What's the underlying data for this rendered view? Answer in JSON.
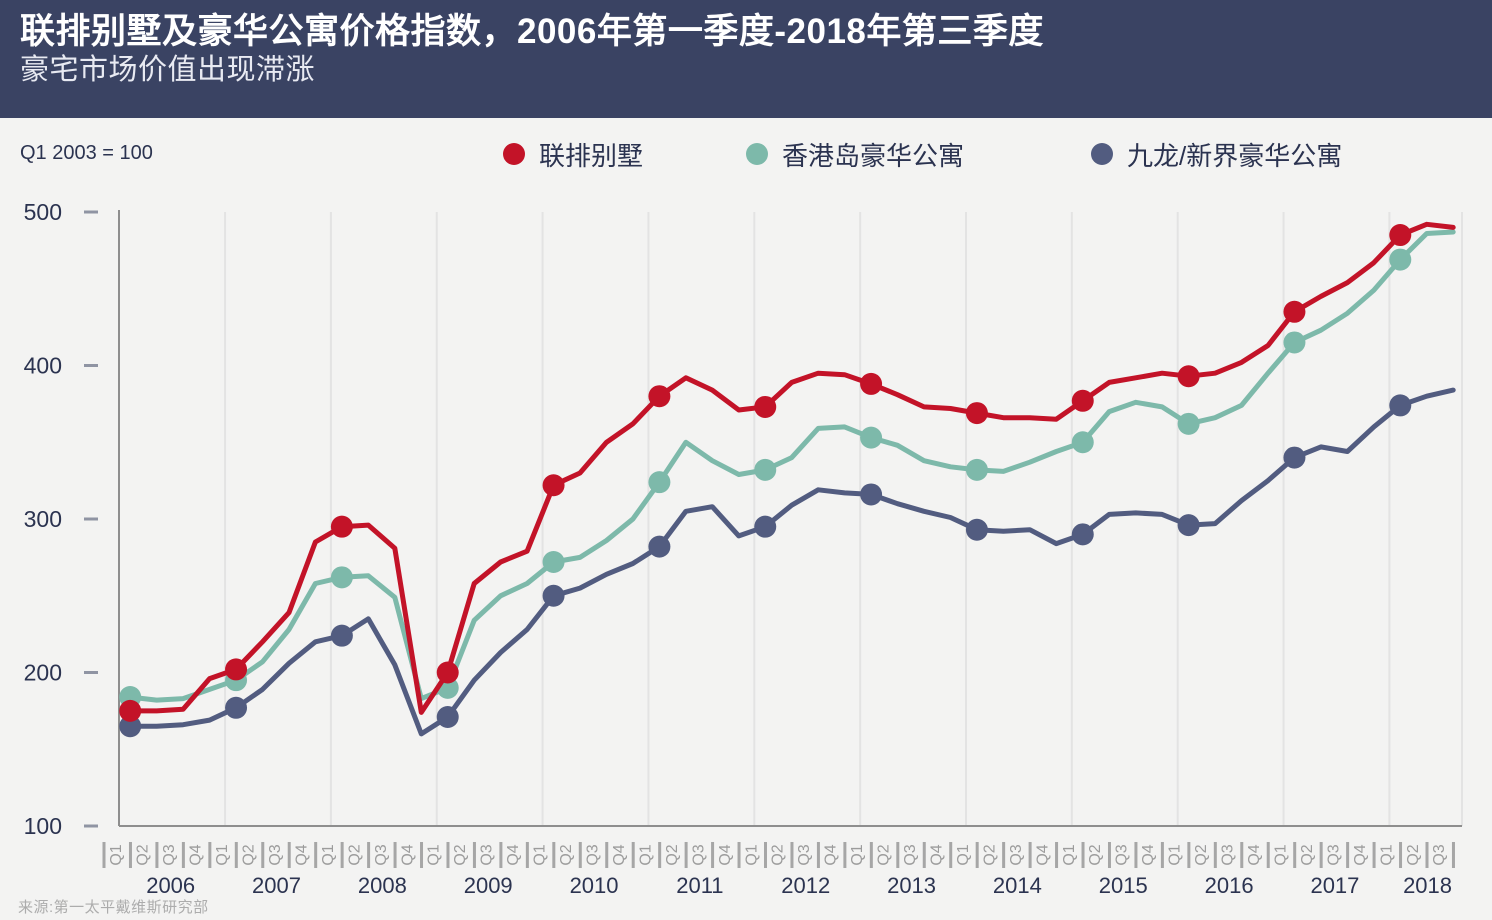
{
  "header": {
    "title": "联排别墅及豪华公寓价格指数，2006年第一季度-2018年第三季度",
    "subtitle": "豪宅市场价值出现滞涨"
  },
  "index_note": "Q1 2003 = 100",
  "legend": {
    "items": [
      {
        "label": "联排别墅",
        "color": "#c31328"
      },
      {
        "label": "香港岛豪华公寓",
        "color": "#7db9aa"
      },
      {
        "label": "九龙/新界豪华公寓",
        "color": "#525c80"
      }
    ]
  },
  "source": "来源:第一太平戴维斯研究部",
  "colors": {
    "header_bg": "#3a4363",
    "page_bg": "#f3f3f2",
    "grid": "#e3e3e3",
    "axis": "#8e8e8e",
    "tick": "#a6a6a6",
    "tick_text": "#9c9c9c",
    "dark_text": "#2b3350",
    "ytick_dash": "#8f94a3"
  },
  "chart_data": {
    "type": "line",
    "title": "联排别墅及豪华公寓价格指数，2006年第一季度-2018年第三季度",
    "subtitle": "豪宅市场价值出现滞涨",
    "index_base": "Q1 2003 = 100",
    "grid": "vertical-year-boundaries",
    "legend_position": "top",
    "marker_every": 4,
    "ylim": [
      100,
      500
    ],
    "yticks": [
      100,
      200,
      300,
      400,
      500
    ],
    "quarter_labels": [
      "Q1",
      "Q2",
      "Q3",
      "Q4"
    ],
    "years": [
      "2006",
      "2007",
      "2008",
      "2009",
      "2010",
      "2011",
      "2012",
      "2013",
      "2014",
      "2015",
      "2016",
      "2017",
      "2018"
    ],
    "categories": [
      "2006 Q1",
      "2006 Q2",
      "2006 Q3",
      "2006 Q4",
      "2007 Q1",
      "2007 Q2",
      "2007 Q3",
      "2007 Q4",
      "2008 Q1",
      "2008 Q2",
      "2008 Q3",
      "2008 Q4",
      "2009 Q1",
      "2009 Q2",
      "2009 Q3",
      "2009 Q4",
      "2010 Q1",
      "2010 Q2",
      "2010 Q3",
      "2010 Q4",
      "2011 Q1",
      "2011 Q2",
      "2011 Q3",
      "2011 Q4",
      "2012 Q1",
      "2012 Q2",
      "2012 Q3",
      "2012 Q4",
      "2013 Q1",
      "2013 Q2",
      "2013 Q3",
      "2013 Q4",
      "2014 Q1",
      "2014 Q2",
      "2014 Q3",
      "2014 Q4",
      "2015 Q1",
      "2015 Q2",
      "2015 Q3",
      "2015 Q4",
      "2016 Q1",
      "2016 Q2",
      "2016 Q3",
      "2016 Q4",
      "2017 Q1",
      "2017 Q2",
      "2017 Q3",
      "2017 Q4",
      "2018 Q1",
      "2018 Q2",
      "2018 Q3"
    ],
    "series": [
      {
        "name": "九龙/新界豪华公寓",
        "color": "#525c80",
        "values": [
          165,
          165,
          166,
          169,
          177,
          189,
          206,
          220,
          224,
          235,
          205,
          160,
          171,
          195,
          213,
          228,
          250,
          255,
          264,
          271,
          282,
          305,
          308,
          289,
          295,
          309,
          319,
          317,
          316,
          310,
          305,
          301,
          293,
          292,
          293,
          284,
          290,
          303,
          304,
          303,
          296,
          297,
          312,
          325,
          340,
          347,
          344,
          360,
          374,
          380,
          384
        ]
      },
      {
        "name": "香港岛豪华公寓",
        "color": "#7db9aa",
        "values": [
          184,
          182,
          183,
          189,
          195,
          207,
          228,
          258,
          262,
          263,
          249,
          183,
          190,
          234,
          250,
          258,
          272,
          275,
          286,
          300,
          324,
          350,
          338,
          329,
          332,
          340,
          359,
          360,
          353,
          348,
          338,
          334,
          332,
          331,
          337,
          344,
          350,
          370,
          376,
          373,
          362,
          366,
          374,
          395,
          415,
          423,
          434,
          449,
          469,
          486,
          487
        ]
      },
      {
        "name": "联排别墅",
        "color": "#c31328",
        "values": [
          175,
          175,
          176,
          196,
          202,
          220,
          239,
          285,
          295,
          296,
          281,
          174,
          200,
          258,
          272,
          279,
          322,
          330,
          350,
          362,
          380,
          392,
          384,
          371,
          373,
          389,
          395,
          394,
          388,
          381,
          373,
          372,
          369,
          366,
          366,
          365,
          377,
          389,
          392,
          395,
          393,
          395,
          402,
          413,
          435,
          445,
          454,
          467,
          485,
          492,
          490
        ]
      }
    ]
  }
}
